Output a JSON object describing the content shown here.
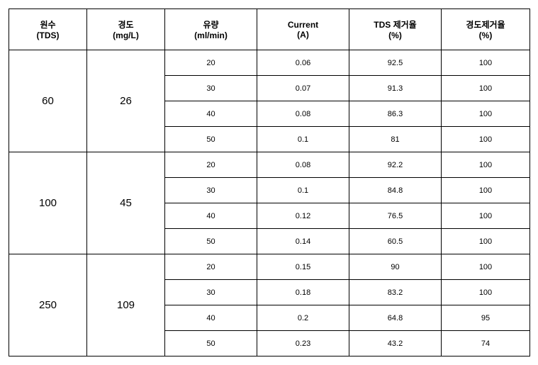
{
  "columns": [
    {
      "line1": "원수",
      "line2": "(TDS)"
    },
    {
      "line1": "경도",
      "line2": "(mg/L)"
    },
    {
      "line1": "유량",
      "line2": "(ml/min)"
    },
    {
      "line1": "Current",
      "line2": "(A)"
    },
    {
      "line1": "TDS 제거율",
      "line2": "(%)"
    },
    {
      "line1": "경도제거율",
      "line2": "(%)"
    }
  ],
  "groups": [
    {
      "tds": "60",
      "hardness": "26",
      "rows": [
        {
          "flow": "20",
          "current": "0.06",
          "tds_removal": "92.5",
          "hardness_removal": "100"
        },
        {
          "flow": "30",
          "current": "0.07",
          "tds_removal": "91.3",
          "hardness_removal": "100"
        },
        {
          "flow": "40",
          "current": "0.08",
          "tds_removal": "86.3",
          "hardness_removal": "100"
        },
        {
          "flow": "50",
          "current": "0.1",
          "tds_removal": "81",
          "hardness_removal": "100"
        }
      ]
    },
    {
      "tds": "100",
      "hardness": "45",
      "rows": [
        {
          "flow": "20",
          "current": "0.08",
          "tds_removal": "92.2",
          "hardness_removal": "100"
        },
        {
          "flow": "30",
          "current": "0.1",
          "tds_removal": "84.8",
          "hardness_removal": "100"
        },
        {
          "flow": "40",
          "current": "0.12",
          "tds_removal": "76.5",
          "hardness_removal": "100"
        },
        {
          "flow": "50",
          "current": "0.14",
          "tds_removal": "60.5",
          "hardness_removal": "100"
        }
      ]
    },
    {
      "tds": "250",
      "hardness": "109",
      "rows": [
        {
          "flow": "20",
          "current": "0.15",
          "tds_removal": "90",
          "hardness_removal": "100"
        },
        {
          "flow": "30",
          "current": "0.18",
          "tds_removal": "83.2",
          "hardness_removal": "100"
        },
        {
          "flow": "40",
          "current": "0.2",
          "tds_removal": "64.8",
          "hardness_removal": "95"
        },
        {
          "flow": "50",
          "current": "0.23",
          "tds_removal": "43.2",
          "hardness_removal": "74"
        }
      ]
    }
  ]
}
